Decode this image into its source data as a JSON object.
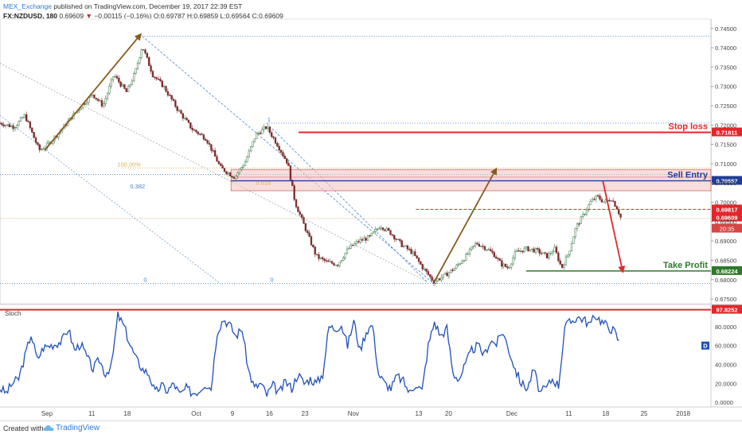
{
  "header": {
    "brand": "MEX_Exchange",
    "published": " published on TradingView.com, December 19, 2017 22:39 EST",
    "symbol": "FX:NZDUSD, 180",
    "last": "0.69609",
    "change": "−0.00115 (−0.16%)",
    "ohlc": "O:0.69787 H:0.69859 L:0.69564 C:0.69609"
  },
  "footer": {
    "created_with": "Created with",
    "brand": "TradingView"
  },
  "colors": {
    "candle_up": "#3f7a4a",
    "candle_down": "#7a2a2a",
    "stoploss": "#e3262b",
    "sell_entry": "#1f3c99",
    "take_profit": "#2f7a2a",
    "arrow_up": "#8a5a1e",
    "arrow_down": "#e3262b",
    "stoch": "#2050b8",
    "fib": "#4a86c8",
    "fib_100": "#d4b456"
  },
  "chart_data": {
    "type": "candlestick",
    "symbol": "FX:NZDUSD",
    "timeframe": "180",
    "price_axis": {
      "ylim": [
        0.6744,
        0.7468
      ],
      "ticks": [
        "0.74500",
        "0.74000",
        "0.73500",
        "0.73000",
        "0.72500",
        "0.72000",
        "0.71500",
        "0.71000",
        "0.70500",
        "0.70000",
        "0.69500",
        "0.69000",
        "0.68500",
        "0.68000",
        "0.67500"
      ],
      "tick_values": [
        0.745,
        0.74,
        0.735,
        0.73,
        0.725,
        0.72,
        0.715,
        0.71,
        0.705,
        0.7,
        0.695,
        0.69,
        0.685,
        0.68,
        0.675
      ]
    },
    "time_axis": {
      "labels": [
        "Sep",
        "11",
        "18",
        "Oct",
        "9",
        "16",
        "23",
        "Nov",
        "13",
        "20",
        "Dec",
        "11",
        "18",
        "25",
        "2018"
      ],
      "positions": [
        0.066,
        0.129,
        0.179,
        0.276,
        0.327,
        0.379,
        0.429,
        0.497,
        0.589,
        0.631,
        0.72,
        0.8,
        0.852,
        0.906,
        0.961
      ]
    },
    "price_path": [
      [
        0.0,
        0.7205
      ],
      [
        0.02,
        0.7195
      ],
      [
        0.035,
        0.7225
      ],
      [
        0.055,
        0.7135
      ],
      [
        0.065,
        0.7145
      ],
      [
        0.085,
        0.7185
      ],
      [
        0.105,
        0.723
      ],
      [
        0.13,
        0.728
      ],
      [
        0.145,
        0.725
      ],
      [
        0.16,
        0.733
      ],
      [
        0.17,
        0.7305
      ],
      [
        0.178,
        0.7285
      ],
      [
        0.19,
        0.7335
      ],
      [
        0.2,
        0.7405
      ],
      [
        0.215,
        0.733
      ],
      [
        0.23,
        0.73
      ],
      [
        0.25,
        0.724
      ],
      [
        0.27,
        0.719
      ],
      [
        0.29,
        0.7165
      ],
      [
        0.31,
        0.709
      ],
      [
        0.33,
        0.7065
      ],
      [
        0.345,
        0.7105
      ],
      [
        0.36,
        0.7175
      ],
      [
        0.375,
        0.7195
      ],
      [
        0.39,
        0.715
      ],
      [
        0.405,
        0.71
      ],
      [
        0.415,
        0.7
      ],
      [
        0.43,
        0.693
      ],
      [
        0.445,
        0.686
      ],
      [
        0.46,
        0.6845
      ],
      [
        0.475,
        0.684
      ],
      [
        0.49,
        0.688
      ],
      [
        0.505,
        0.69
      ],
      [
        0.52,
        0.691
      ],
      [
        0.535,
        0.694
      ],
      [
        0.55,
        0.692
      ],
      [
        0.565,
        0.689
      ],
      [
        0.58,
        0.687
      ],
      [
        0.595,
        0.683
      ],
      [
        0.61,
        0.6795
      ],
      [
        0.625,
        0.681
      ],
      [
        0.64,
        0.683
      ],
      [
        0.655,
        0.686
      ],
      [
        0.67,
        0.6895
      ],
      [
        0.685,
        0.688
      ],
      [
        0.695,
        0.6865
      ],
      [
        0.705,
        0.684
      ],
      [
        0.715,
        0.683
      ],
      [
        0.725,
        0.687
      ],
      [
        0.74,
        0.688
      ],
      [
        0.755,
        0.6875
      ],
      [
        0.77,
        0.686
      ],
      [
        0.78,
        0.688
      ],
      [
        0.79,
        0.683
      ],
      [
        0.8,
        0.687
      ],
      [
        0.81,
        0.6935
      ],
      [
        0.82,
        0.6965
      ],
      [
        0.83,
        0.7
      ],
      [
        0.84,
        0.7015
      ],
      [
        0.85,
        0.7
      ],
      [
        0.86,
        0.701
      ],
      [
        0.868,
        0.6985
      ],
      [
        0.873,
        0.6961
      ]
    ],
    "levels": [
      {
        "label": "Stop loss",
        "value": 0.71811,
        "price_label": "0.71811"
      },
      {
        "label": "Sell Entry",
        "value": 0.70557,
        "price_label": "0.70557"
      },
      {
        "label": "Take Profit",
        "value": 0.68224,
        "price_label": "0.68224"
      },
      {
        "label": "",
        "value": 0.69817,
        "price_label": "0.69817"
      },
      {
        "label": "",
        "value": 0.69609,
        "price_label": "0.69609"
      }
    ],
    "countdown": "20:35",
    "fib_labels": [
      {
        "label": "100.00%",
        "value": 0.7089
      },
      {
        "label": "0.382",
        "value": 0.7032
      },
      {
        "label": "0.618",
        "value": 0.7041
      },
      {
        "label": "0",
        "value": 0.679
      },
      {
        "label": "1",
        "value": 0.7205
      }
    ],
    "stochastic": {
      "label": "Stoch",
      "ylim": [
        -4,
        100
      ],
      "ticks": [
        "80.0000",
        "60.0000",
        "40.0000",
        "20.0000",
        "0.0000"
      ],
      "tick_values": [
        80,
        60,
        40,
        20,
        0
      ],
      "current_label": "97.8252",
      "current_value": 97.8252,
      "series_marker": "D",
      "path": [
        [
          0.0,
          15
        ],
        [
          0.01,
          10
        ],
        [
          0.02,
          20
        ],
        [
          0.03,
          25
        ],
        [
          0.04,
          48
        ],
        [
          0.05,
          72
        ],
        [
          0.06,
          45
        ],
        [
          0.07,
          58
        ],
        [
          0.08,
          60
        ],
        [
          0.09,
          62
        ],
        [
          0.1,
          65
        ],
        [
          0.11,
          78
        ],
        [
          0.12,
          55
        ],
        [
          0.13,
          62
        ],
        [
          0.14,
          48
        ],
        [
          0.15,
          35
        ],
        [
          0.16,
          45
        ],
        [
          0.17,
          30
        ],
        [
          0.18,
          40
        ],
        [
          0.19,
          92
        ],
        [
          0.2,
          80
        ],
        [
          0.21,
          60
        ],
        [
          0.22,
          45
        ],
        [
          0.23,
          35
        ],
        [
          0.24,
          30
        ],
        [
          0.25,
          10
        ],
        [
          0.26,
          18
        ],
        [
          0.27,
          12
        ],
        [
          0.28,
          20
        ],
        [
          0.29,
          8
        ],
        [
          0.3,
          15
        ],
        [
          0.31,
          10
        ],
        [
          0.32,
          12
        ],
        [
          0.33,
          20
        ],
        [
          0.34,
          15
        ],
        [
          0.35,
          75
        ],
        [
          0.36,
          88
        ],
        [
          0.37,
          82
        ],
        [
          0.38,
          70
        ],
        [
          0.39,
          78
        ],
        [
          0.4,
          35
        ],
        [
          0.41,
          15
        ],
        [
          0.42,
          20
        ],
        [
          0.43,
          8
        ],
        [
          0.44,
          18
        ],
        [
          0.45,
          10
        ],
        [
          0.46,
          22
        ],
        [
          0.47,
          15
        ],
        [
          0.48,
          30
        ],
        [
          0.49,
          20
        ],
        [
          0.5,
          25
        ],
        [
          0.51,
          20
        ],
        [
          0.52,
          30
        ],
        [
          0.53,
          80
        ],
        [
          0.54,
          78
        ],
        [
          0.55,
          82
        ],
        [
          0.56,
          60
        ],
        [
          0.57,
          86
        ],
        [
          0.58,
          55
        ],
        [
          0.59,
          75
        ],
        [
          0.6,
          82
        ],
        [
          0.61,
          30
        ],
        [
          0.62,
          20
        ],
        [
          0.63,
          15
        ],
        [
          0.64,
          28
        ],
        [
          0.65,
          22
        ],
        [
          0.66,
          10
        ],
        [
          0.67,
          20
        ],
        [
          0.68,
          12
        ],
        [
          0.69,
          60
        ],
        [
          0.7,
          85
        ],
        [
          0.71,
          70
        ],
        [
          0.72,
          78
        ],
        [
          0.73,
          30
        ],
        [
          0.74,
          25
        ],
        [
          0.75,
          40
        ],
        [
          0.76,
          55
        ],
        [
          0.77,
          60
        ],
        [
          0.78,
          50
        ],
        [
          0.79,
          65
        ],
        [
          0.8,
          62
        ],
        [
          0.81,
          75
        ],
        [
          0.82,
          55
        ],
        [
          0.83,
          35
        ],
        [
          0.84,
          20
        ],
        [
          0.85,
          15
        ],
        [
          0.86,
          35
        ],
        [
          0.87,
          10
        ],
        [
          0.88,
          15
        ],
        [
          0.89,
          25
        ],
        [
          0.9,
          18
        ],
        [
          0.91,
          80
        ],
        [
          0.92,
          85
        ],
        [
          0.93,
          90
        ],
        [
          0.94,
          88
        ],
        [
          0.95,
          82
        ],
        [
          0.96,
          92
        ],
        [
          0.97,
          85
        ],
        [
          0.98,
          80
        ],
        [
          0.99,
          75
        ],
        [
          1.0,
          60
        ]
      ]
    }
  }
}
